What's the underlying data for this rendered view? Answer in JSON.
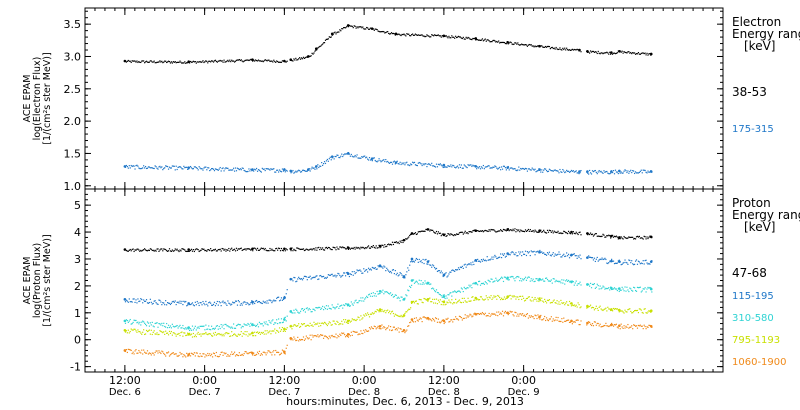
{
  "chart_data": [
    {
      "type": "scatter",
      "panel": "electron",
      "ylabel_lines": [
        "ACE EPAM",
        "log(Electron Flux)",
        "[1/(cm²s ster MeV)]"
      ],
      "ylim": [
        0.95,
        3.75
      ],
      "yticks": [
        "1.0",
        "1.5",
        "2.0",
        "2.5",
        "3.0",
        "3.5"
      ],
      "yticks_values": [
        1.0,
        1.5,
        2.0,
        2.5,
        3.0,
        3.5
      ],
      "legend_title_lines": [
        "Electron",
        "Energy ranges",
        "[keV]"
      ],
      "series": [
        {
          "name": "38-53",
          "color": "#000000",
          "x": [
            0.0,
            0.4,
            0.8,
            1.0,
            1.04,
            1.15,
            1.2,
            1.3,
            1.4,
            1.55,
            1.7,
            2.0,
            2.2,
            2.4,
            2.6,
            2.85,
            2.9,
            3.05,
            3.1,
            3.3
          ],
          "values": [
            2.93,
            2.92,
            2.95,
            2.93,
            2.95,
            3.0,
            3.12,
            3.35,
            3.48,
            3.43,
            3.35,
            3.32,
            3.28,
            3.22,
            3.16,
            3.1,
            3.08,
            3.06,
            3.08,
            3.04
          ]
        },
        {
          "name": "175-315",
          "color": "#1f77c8",
          "x": [
            0.0,
            0.4,
            0.8,
            1.0,
            1.04,
            1.15,
            1.2,
            1.3,
            1.4,
            1.55,
            1.7,
            2.0,
            2.2,
            2.4,
            2.6,
            2.85,
            2.9,
            3.05,
            3.1,
            3.3
          ],
          "values": [
            1.3,
            1.28,
            1.25,
            1.25,
            1.23,
            1.25,
            1.3,
            1.45,
            1.5,
            1.42,
            1.36,
            1.32,
            1.3,
            1.28,
            1.25,
            1.22,
            1.22,
            1.22,
            1.23,
            1.22
          ]
        }
      ]
    },
    {
      "type": "scatter",
      "panel": "proton",
      "ylabel_lines": [
        "ACE EPAM",
        "log(Proton Flux)",
        "[1/(cm²s ster MeV)]"
      ],
      "ylim": [
        -1.2,
        5.6
      ],
      "yticks": [
        "-1",
        "0",
        "1",
        "2",
        "3",
        "4",
        "5"
      ],
      "yticks_values": [
        -1,
        0,
        1,
        2,
        3,
        4,
        5
      ],
      "legend_title_lines": [
        "Proton",
        "Energy ranges",
        "[keV]"
      ],
      "series": [
        {
          "name": "47-68",
          "color": "#000000",
          "x": [
            0.0,
            0.4,
            0.8,
            1.0,
            1.04,
            1.4,
            1.6,
            1.75,
            1.8,
            1.9,
            2.0,
            2.2,
            2.4,
            2.6,
            2.8,
            2.9,
            3.05,
            3.1,
            3.3
          ],
          "values": [
            3.35,
            3.35,
            3.38,
            3.38,
            3.38,
            3.42,
            3.48,
            3.7,
            3.95,
            4.1,
            3.9,
            4.05,
            4.1,
            4.05,
            4.0,
            3.95,
            3.85,
            3.8,
            3.82
          ]
        },
        {
          "name": "115-195",
          "color": "#1f77c8",
          "x": [
            0.0,
            0.4,
            0.8,
            1.0,
            1.04,
            1.4,
            1.6,
            1.75,
            1.8,
            1.9,
            2.0,
            2.2,
            2.4,
            2.6,
            2.8,
            2.9,
            3.05,
            3.1,
            3.3
          ],
          "values": [
            1.5,
            1.35,
            1.4,
            1.55,
            2.25,
            2.45,
            2.75,
            2.35,
            3.0,
            2.9,
            2.4,
            2.95,
            3.2,
            3.25,
            3.15,
            3.05,
            2.92,
            2.9,
            2.9
          ]
        },
        {
          "name": "310-580",
          "color": "#2fd3d3",
          "x": [
            0.0,
            0.4,
            0.8,
            1.0,
            1.04,
            1.4,
            1.6,
            1.75,
            1.8,
            1.9,
            2.0,
            2.2,
            2.4,
            2.6,
            2.8,
            2.9,
            3.05,
            3.1,
            3.3
          ],
          "values": [
            0.7,
            0.45,
            0.55,
            0.75,
            1.05,
            1.3,
            1.8,
            1.5,
            2.2,
            2.1,
            1.6,
            2.1,
            2.3,
            2.25,
            2.15,
            2.05,
            1.92,
            1.9,
            1.88
          ]
        },
        {
          "name": "795-1193",
          "color": "#c8e000",
          "x": [
            0.0,
            0.4,
            0.8,
            1.0,
            1.04,
            1.4,
            1.6,
            1.75,
            1.8,
            1.9,
            2.0,
            2.2,
            2.4,
            2.6,
            2.8,
            2.9,
            3.05,
            3.1,
            3.3
          ],
          "values": [
            0.35,
            0.2,
            0.25,
            0.4,
            0.5,
            0.7,
            1.1,
            0.9,
            1.4,
            1.5,
            1.4,
            1.55,
            1.6,
            1.5,
            1.35,
            1.25,
            1.12,
            1.1,
            1.08
          ]
        },
        {
          "name": "1060-1900",
          "color": "#f08a1a",
          "x": [
            0.0,
            0.4,
            0.8,
            1.0,
            1.04,
            1.4,
            1.6,
            1.75,
            1.8,
            1.9,
            2.0,
            2.2,
            2.4,
            2.6,
            2.8,
            2.9,
            3.05,
            3.1,
            3.3
          ],
          "values": [
            -0.4,
            -0.55,
            -0.5,
            -0.45,
            0.05,
            0.2,
            0.5,
            0.35,
            0.75,
            0.8,
            0.7,
            0.95,
            1.0,
            0.85,
            0.7,
            0.62,
            0.55,
            0.52,
            0.5
          ]
        }
      ]
    }
  ],
  "xaxis": {
    "xlim": [
      -0.25,
      3.75
    ],
    "major_ticks": [
      {
        "x": 0.0,
        "time": "12:00",
        "day": "Dec. 6"
      },
      {
        "x": 0.5,
        "time": "0:00",
        "day": "Dec. 7"
      },
      {
        "x": 1.0,
        "time": "12:00",
        "day": "Dec. 7"
      },
      {
        "x": 1.5,
        "time": "0:00",
        "day": "Dec. 8"
      },
      {
        "x": 2.0,
        "time": "12:00",
        "day": "Dec. 8"
      },
      {
        "x": 2.5,
        "time": "0:00",
        "day": "Dec. 9"
      }
    ],
    "label": "hours:minutes, Dec.  6, 2013 - Dec.  9, 2013"
  }
}
